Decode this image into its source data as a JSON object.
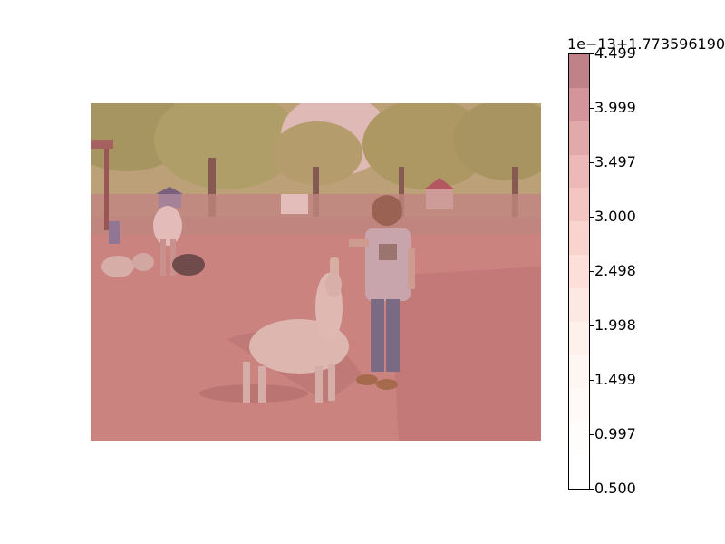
{
  "colorbar": {
    "offset_text": "1e−13+1.773596190",
    "tick_labels": [
      "4.499",
      "3.999",
      "3.497",
      "3.000",
      "2.498",
      "1.998",
      "1.499",
      "0.997",
      "0.500"
    ],
    "colors": [
      "#bf8288",
      "#d4959a",
      "#e2a9ab",
      "#ecb8b8",
      "#f4c6c2",
      "#f9d3cd",
      "#fcdfd8",
      "#fde9e3",
      "#fef1ec",
      "#fef6f2",
      "#fffaf8",
      "#fffdfc",
      "#ffffff"
    ]
  },
  "image": {
    "tint": "#d78a8a",
    "description_colors": {
      "ground": "#c47a76",
      "trees": "#9aa35a",
      "sky": "#e6c9c4"
    }
  }
}
